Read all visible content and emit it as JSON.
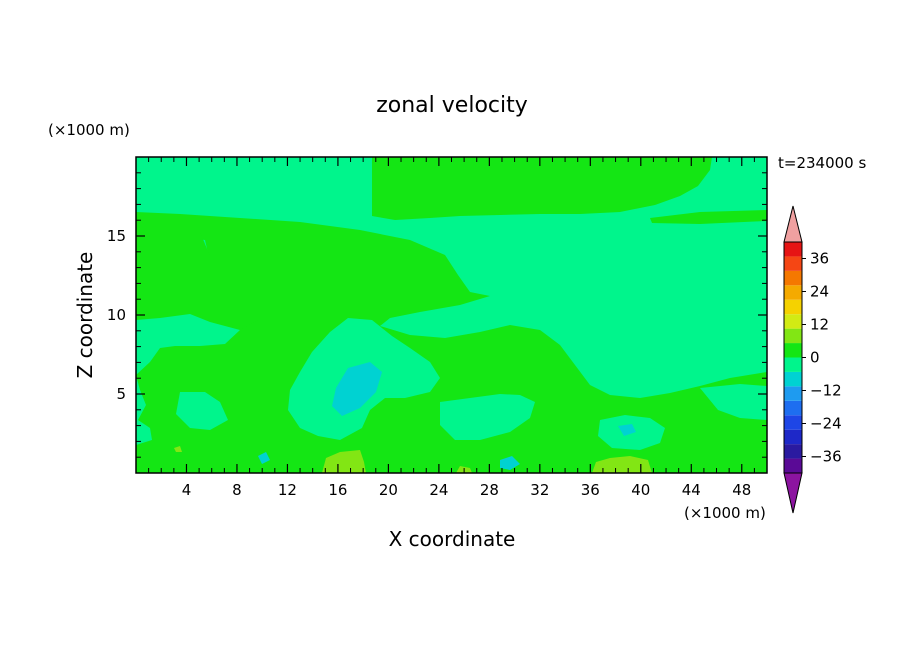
{
  "chart_data": {
    "type": "heatmap",
    "title": "zonal velocity",
    "xlabel": "X coordinate",
    "ylabel": "Z coordinate",
    "x_unit": "(×1000 m)",
    "y_unit": "(×1000 m)",
    "time_label": "t=234000 s",
    "xlim": [
      0,
      50
    ],
    "ylim": [
      0,
      20
    ],
    "x_ticks": [
      4,
      8,
      12,
      16,
      20,
      24,
      28,
      32,
      36,
      40,
      44,
      48
    ],
    "y_ticks": [
      5,
      10,
      15
    ],
    "colorbar": {
      "levels": [
        -42,
        -36,
        -30,
        -24,
        -18,
        -12,
        -6,
        0,
        6,
        12,
        18,
        24,
        30,
        36,
        42
      ],
      "labels": [
        "36",
        "24",
        "12",
        "0",
        "-12",
        "-24",
        "-36"
      ],
      "colors_low_to_high": [
        "#5a0a96",
        "#2a1aa0",
        "#1e28c8",
        "#1e46e6",
        "#1e6ef0",
        "#1e9bf0",
        "#00d2d2",
        "#00f58c",
        "#14e614",
        "#82e614",
        "#d2eb14",
        "#f5d200",
        "#f5aa00",
        "#f57800",
        "#f54614",
        "#e61414"
      ],
      "under_color": "#8c14a0",
      "over_color": "#f0a0a0"
    },
    "field_description": "Mostly -6 to 0 (#00f58c) background with 0 to 6 (#14e614) regions; small 6 to 12 (#82e614) patches near surface; small -12 to -6 (#00d2d2) patches near x=18,z=5"
  }
}
